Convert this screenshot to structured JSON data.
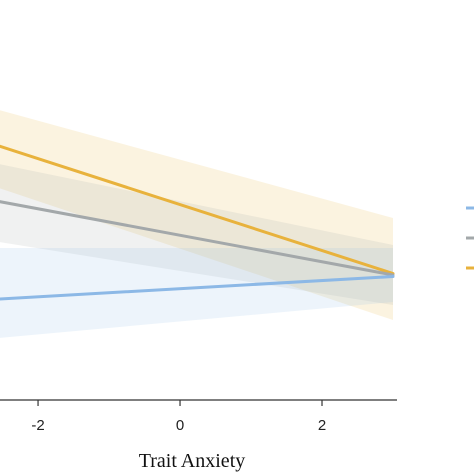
{
  "chart_data": {
    "type": "line",
    "xlabel": "Trait Anxiety",
    "x_ticks": [
      -2,
      0,
      2
    ],
    "xlim": [
      -2.55,
      3.0
    ],
    "ylim": [
      0,
      1
    ],
    "grid": false,
    "legend": "right (labels cropped)",
    "series": [
      {
        "color": "#e8b23c",
        "x": [
          -2.55,
          3.0
        ],
        "y": [
          0.78,
          0.355
        ],
        "ci_upper": [
          0.9,
          0.54
        ],
        "ci_lower": [
          0.64,
          0.2
        ]
      },
      {
        "color": "#a3a8aa",
        "x": [
          -2.55,
          3.0
        ],
        "y": [
          0.595,
          0.35
        ],
        "ci_upper": [
          0.72,
          0.45
        ],
        "ci_lower": [
          0.46,
          0.25
        ]
      },
      {
        "color": "#8cb8e6",
        "x": [
          -2.55,
          3.0
        ],
        "y": [
          0.27,
          0.345
        ],
        "ci_upper": [
          0.44,
          0.44
        ],
        "ci_lower": [
          0.14,
          0.26
        ]
      }
    ]
  }
}
